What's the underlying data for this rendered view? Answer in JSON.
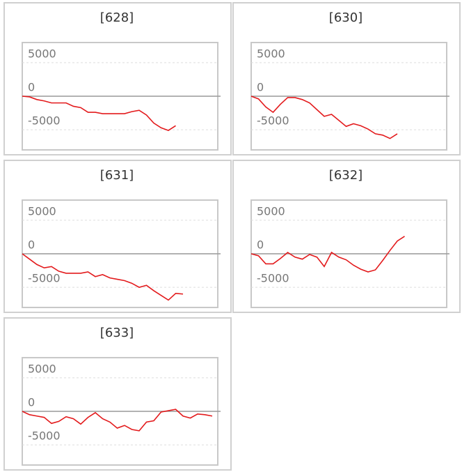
{
  "chart_data": [
    {
      "type": "line",
      "title": "[628]",
      "categories": [
        null,
        null,
        null,
        null,
        null,
        null,
        null,
        null,
        null,
        null,
        null,
        null,
        null,
        null,
        null,
        null,
        null,
        null,
        null,
        null,
        null,
        null
      ],
      "series": [
        {
          "color": "#e31a1c",
          "values": [
            0,
            -100,
            -500,
            -700,
            -1000,
            -1000,
            -1000,
            -1500,
            -1700,
            -2400,
            -2400,
            -2600,
            -2600,
            -2600,
            -2600,
            -2300,
            -2100,
            -2800,
            -4000,
            -4700,
            -5100,
            -4400
          ]
        }
      ],
      "ylim": [
        -8000,
        8000
      ],
      "yticks": [
        -5000,
        0,
        5000
      ],
      "grid": true
    },
    {
      "type": "line",
      "title": "[630]",
      "categories": [
        null,
        null,
        null,
        null,
        null,
        null,
        null,
        null,
        null,
        null,
        null,
        null,
        null,
        null,
        null,
        null,
        null,
        null,
        null,
        null,
        null
      ],
      "series": [
        {
          "color": "#e31a1c",
          "values": [
            0,
            -400,
            -1600,
            -2400,
            -1200,
            -200,
            -200,
            -500,
            -1000,
            -2000,
            -3000,
            -2700,
            -3600,
            -4500,
            -4100,
            -4400,
            -4900,
            -5600,
            -5800,
            -6300,
            -5600
          ]
        }
      ],
      "ylim": [
        -8000,
        8000
      ],
      "yticks": [
        -5000,
        0,
        5000
      ],
      "grid": true
    },
    {
      "type": "line",
      "title": "[631]",
      "categories": [
        null,
        null,
        null,
        null,
        null,
        null,
        null,
        null,
        null,
        null,
        null,
        null,
        null,
        null,
        null,
        null,
        null,
        null,
        null,
        null,
        null,
        null,
        null
      ],
      "series": [
        {
          "color": "#e31a1c",
          "values": [
            0,
            -800,
            -1600,
            -2100,
            -1900,
            -2600,
            -2900,
            -2900,
            -2900,
            -2700,
            -3400,
            -3100,
            -3600,
            -3800,
            -4000,
            -4400,
            -5000,
            -4700,
            -5500,
            -6200,
            -6900,
            -5900,
            -6000
          ]
        }
      ],
      "ylim": [
        -8000,
        8000
      ],
      "yticks": [
        -5000,
        0,
        5000
      ],
      "grid": true
    },
    {
      "type": "line",
      "title": "[632]",
      "categories": [
        null,
        null,
        null,
        null,
        null,
        null,
        null,
        null,
        null,
        null,
        null,
        null,
        null,
        null,
        null,
        null,
        null,
        null,
        null,
        null,
        null,
        null
      ],
      "series": [
        {
          "color": "#e31a1c",
          "values": [
            0,
            -300,
            -1500,
            -1500,
            -700,
            200,
            -500,
            -800,
            -100,
            -500,
            -1900,
            200,
            -500,
            -900,
            -1700,
            -2300,
            -2700,
            -2400,
            -1000,
            500,
            1900,
            2600
          ]
        }
      ],
      "ylim": [
        -8000,
        8000
      ],
      "yticks": [
        -5000,
        0,
        5000
      ],
      "grid": true
    },
    {
      "type": "line",
      "title": "[633]",
      "categories": [
        null,
        null,
        null,
        null,
        null,
        null,
        null,
        null,
        null,
        null,
        null,
        null,
        null,
        null,
        null,
        null,
        null,
        null,
        null,
        null,
        null,
        null,
        null,
        null,
        null,
        null,
        null
      ],
      "series": [
        {
          "color": "#e31a1c",
          "values": [
            0,
            -500,
            -700,
            -900,
            -1800,
            -1500,
            -800,
            -1100,
            -1900,
            -900,
            -200,
            -1100,
            -1600,
            -2500,
            -2100,
            -2700,
            -2900,
            -1600,
            -1400,
            -100,
            100,
            300,
            -700,
            -1000,
            -400,
            -500,
            -700
          ]
        }
      ],
      "ylim": [
        -8000,
        8000
      ],
      "yticks": [
        -5000,
        0,
        5000
      ],
      "grid": true
    }
  ]
}
